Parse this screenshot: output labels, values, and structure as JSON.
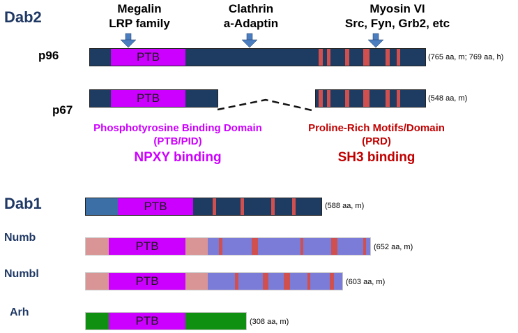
{
  "colors": {
    "dab_dark": "#1e3c62",
    "dab1_blue": "#3b6fa6",
    "ptb_magenta": "#cc00ff",
    "motif_red": "#d05050",
    "numb_pink": "#d99595",
    "numb_periwinkle": "#7b7bd8",
    "arh_green": "#109010"
  },
  "header": {
    "dab2": "Dab2",
    "dab1": "Dab1"
  },
  "partners": {
    "megalin_line1": "Megalin",
    "megalin_line2": "LRP family",
    "clathrin_line1": "Clathrin",
    "clathrin_line2": "a-Adaptin",
    "myosin_line1": "Myosin VI",
    "myosin_line2": "Src, Fyn, Grb2, etc"
  },
  "isoforms": {
    "p96": "p96",
    "p67": "p67"
  },
  "domain_label": "PTB",
  "lengths": {
    "p96": "(765 aa, m; 769 aa, h)",
    "p67": "(548 aa, m)",
    "dab1": "(588 aa, m)",
    "numb": "(652 aa, m)",
    "numbl": "(603 aa, m)",
    "arh": "(308 aa, m)"
  },
  "annotations": {
    "ptb_line1": "Phosphotyrosine Binding Domain",
    "ptb_line2": "(PTB/PID)",
    "ptb_binding": "NPXY binding",
    "prd_line1": "Proline-Rich Motifs/Domain",
    "prd_line2": "(PRD)",
    "prd_binding": "SH3 binding"
  },
  "proteins": {
    "numb": "Numb",
    "numbl": "Numbl",
    "arh": "Arh"
  }
}
